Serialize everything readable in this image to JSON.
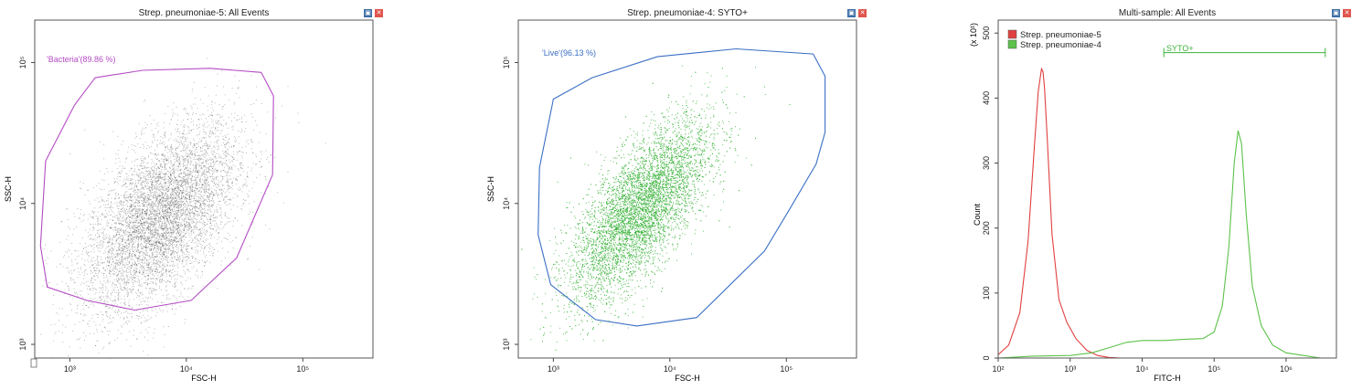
{
  "panels": [
    {
      "title": "Strep. pneumoniae-5: All Events",
      "xlabel": "FSC-H",
      "ylabel": "SSC-H",
      "gate_label": "'Bacteria'(89.86 %)",
      "gate_color": "#b44cc4",
      "dot_color": "#3a3a3a"
    },
    {
      "title": "Strep. pneumoniae-4: SYTO+",
      "xlabel": "FSC-H",
      "ylabel": "SSC-H",
      "gate_label": "'Live'(96.13 %)",
      "gate_color": "#3a6fc4",
      "dot_color": "#3cb33c"
    },
    {
      "title": "Multi-sample: All Events",
      "xlabel": "FITC-H",
      "ylabel": "Count",
      "y_multiplier": "(x 10¹)",
      "gate_label": "SYTO+",
      "gate_color": "#3cb33c"
    }
  ],
  "controls": {
    "restore_icon": "restore-icon",
    "close_icon": "close-icon"
  },
  "chart_data": [
    {
      "type": "scatter",
      "title": "Strep. pneumoniae-5: All Events",
      "xlabel": "FSC-H",
      "ylabel": "SSC-H",
      "x_scale": "log",
      "y_scale": "log",
      "xlim": [
        500,
        400000
      ],
      "ylim": [
        800,
        200000
      ],
      "x_ticks": [
        {
          "value": 1000,
          "label": "10³"
        },
        {
          "value": 10000,
          "label": "10⁴"
        },
        {
          "value": 100000,
          "label": "10⁵"
        }
      ],
      "y_ticks": [
        {
          "value": 1000,
          "label": "10³"
        },
        {
          "value": 10000,
          "label": "10⁴"
        },
        {
          "value": 100000,
          "label": "10⁵"
        }
      ],
      "population": {
        "center": [
          6000,
          8000
        ],
        "spread_log10": [
          0.33,
          0.33
        ],
        "correlation": 0.55,
        "events_drawn": 7000
      },
      "gate": {
        "name": "Bacteria",
        "percent": 89.86,
        "label": "'Bacteria'(89.86 %)",
        "polygon": [
          [
            1650,
            78000
          ],
          [
            4200,
            88000
          ],
          [
            16000,
            91000
          ],
          [
            44000,
            85000
          ],
          [
            56000,
            58000
          ],
          [
            55000,
            16000
          ],
          [
            27000,
            4100
          ],
          [
            11000,
            2050
          ],
          [
            3600,
            1750
          ],
          [
            1400,
            2050
          ],
          [
            640,
            2550
          ],
          [
            560,
            5000
          ],
          [
            620,
            20000
          ],
          [
            1100,
            50000
          ]
        ]
      }
    },
    {
      "type": "scatter",
      "title": "Strep. pneumoniae-4: SYTO+",
      "xlabel": "FSC-H",
      "ylabel": "SSC-H",
      "x_scale": "log",
      "y_scale": "log",
      "xlim": [
        500,
        400000
      ],
      "ylim": [
        800,
        200000
      ],
      "x_ticks": [
        {
          "value": 1000,
          "label": "10³"
        },
        {
          "value": 10000,
          "label": "10⁴"
        },
        {
          "value": 100000,
          "label": "10⁵"
        }
      ],
      "y_ticks": [
        {
          "value": 1000,
          "label": "10³"
        },
        {
          "value": 10000,
          "label": "10⁴"
        },
        {
          "value": 100000,
          "label": "10⁵"
        }
      ],
      "population": {
        "center": [
          5500,
          9000
        ],
        "spread_log10": [
          0.3,
          0.32
        ],
        "correlation": 0.7,
        "events_drawn": 7000
      },
      "gate": {
        "name": "Live",
        "percent": 96.13,
        "label": "'Live'(96.13 %)",
        "polygon": [
          [
            1000,
            55000
          ],
          [
            2150,
            78000
          ],
          [
            7800,
            110000
          ],
          [
            37000,
            125000
          ],
          [
            170000,
            115000
          ],
          [
            215000,
            80000
          ],
          [
            215000,
            32000
          ],
          [
            180000,
            19000
          ],
          [
            110000,
            9500
          ],
          [
            65000,
            4600
          ],
          [
            17000,
            1550
          ],
          [
            5200,
            1350
          ],
          [
            2300,
            1500
          ],
          [
            950,
            2650
          ],
          [
            740,
            6000
          ],
          [
            760,
            18000
          ]
        ]
      }
    },
    {
      "type": "area",
      "title": "Multi-sample: All Events",
      "xlabel": "FITC-H",
      "ylabel": "Count",
      "y_multiplier": "(x 10¹)",
      "x_scale": "log",
      "xlim": [
        100,
        5000000
      ],
      "ylim": [
        0,
        520
      ],
      "x_ticks": [
        {
          "value": 100,
          "label": "10²"
        },
        {
          "value": 1000,
          "label": "10³"
        },
        {
          "value": 10000,
          "label": "10⁴"
        },
        {
          "value": 100000,
          "label": "10⁵"
        },
        {
          "value": 1000000,
          "label": "10⁶"
        }
      ],
      "y_ticks": [
        0,
        100,
        200,
        300,
        400,
        500
      ],
      "legend_position": "top-left",
      "series": [
        {
          "name": "Strep. pneumoniae-5",
          "color": "#e04040",
          "x": [
            100,
            140,
            200,
            260,
            320,
            360,
            400,
            420,
            440,
            480,
            560,
            700,
            900,
            1200,
            1700,
            2400,
            3400,
            5000
          ],
          "y": [
            5,
            20,
            70,
            180,
            330,
            410,
            445,
            440,
            415,
            340,
            190,
            90,
            55,
            30,
            12,
            4,
            1,
            0
          ]
        },
        {
          "name": "Strep. pneumoniae-4",
          "color": "#5cc24a",
          "x": [
            100,
            300,
            1000,
            2000,
            3500,
            6000,
            10000,
            20000,
            40000,
            70000,
            100000,
            130000,
            160000,
            190000,
            215000,
            240000,
            280000,
            340000,
            450000,
            650000,
            1000000,
            2000000,
            3000000
          ],
          "y": [
            0,
            3,
            4,
            8,
            16,
            24,
            27,
            27,
            29,
            30,
            40,
            80,
            170,
            300,
            350,
            330,
            220,
            110,
            50,
            20,
            8,
            3,
            0
          ]
        }
      ],
      "gate": {
        "name": "SYTO+",
        "range": [
          20000,
          3500000
        ],
        "y": 470
      }
    }
  ]
}
